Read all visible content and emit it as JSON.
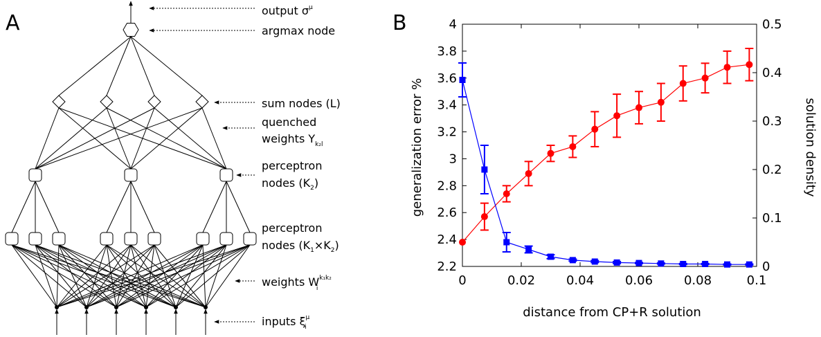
{
  "panels": {
    "a_letter": "A",
    "b_letter": "B"
  },
  "network": {
    "output_label": "output σ",
    "output_sup": "μ",
    "argmax_label": "argmax node",
    "sum_label": "sum nodes (L)",
    "quenched_line1": "quenched",
    "quenched_line2": "weights Y",
    "quenched_sub": "k₂l",
    "perc2_line1": "perceptron",
    "perc2_line2a": "nodes (K",
    "perc2_sub": "2",
    "perc2_line2b": ")",
    "perc1_line1": "perceptron",
    "perc1_line2a": "nodes (K",
    "perc1_sub1": "1",
    "perc1_mid": "×K",
    "perc1_sub2": "2",
    "perc1_line2b": ")",
    "weights_label": "weights W",
    "weights_sub": "i",
    "weights_sup": "k₁k₂",
    "inputs_label": "inputs ξ",
    "inputs_sub": "i",
    "inputs_sup": "μ"
  },
  "chart_data": {
    "type": "line",
    "xlabel": "distance from CP+R solution",
    "ylabel": "generalization error %",
    "y2label": "solution density",
    "xlim": [
      0,
      0.1
    ],
    "ylim": [
      2.2,
      4
    ],
    "y2lim": [
      0,
      0.5
    ],
    "xticks": [
      "0",
      "0.02",
      "0.04",
      "0.06",
      "0.08",
      "0.1"
    ],
    "yticks": [
      "2.2",
      "2.4",
      "2.6",
      "2.8",
      "3",
      "3.2",
      "3.4",
      "3.6",
      "3.8",
      "4"
    ],
    "y2ticks": [
      "0",
      "0.1",
      "0.2",
      "0.3",
      "0.4",
      "0.5"
    ],
    "grid": false,
    "series": [
      {
        "axis": "left",
        "color": "#ff0000",
        "marker": "circle",
        "x": [
          0,
          0.0075,
          0.015,
          0.0225,
          0.03,
          0.0375,
          0.045,
          0.0525,
          0.06,
          0.0675,
          0.075,
          0.0825,
          0.09,
          0.0975
        ],
        "y": [
          2.38,
          2.57,
          2.74,
          2.89,
          3.04,
          3.09,
          3.22,
          3.32,
          3.38,
          3.42,
          3.56,
          3.6,
          3.68,
          3.7
        ],
        "err": [
          0,
          0.1,
          0.06,
          0.09,
          0.06,
          0.08,
          0.13,
          0.16,
          0.12,
          0.14,
          0.13,
          0.11,
          0.12,
          0.12
        ]
      },
      {
        "axis": "right",
        "color": "#0000ff",
        "marker": "square",
        "x": [
          0,
          0.0075,
          0.015,
          0.0225,
          0.03,
          0.0375,
          0.045,
          0.0525,
          0.06,
          0.0675,
          0.075,
          0.0825,
          0.09,
          0.0975
        ],
        "y": [
          0.385,
          0.2,
          0.05,
          0.035,
          0.02,
          0.013,
          0.01,
          0.008,
          0.007,
          0.006,
          0.005,
          0.005,
          0.004,
          0.004
        ],
        "err": [
          0.035,
          0.05,
          0.02,
          0.007,
          0.004,
          0.002,
          0.002,
          0.002,
          0.001,
          0.001,
          0.001,
          0.001,
          0.001,
          0.001
        ]
      }
    ]
  }
}
